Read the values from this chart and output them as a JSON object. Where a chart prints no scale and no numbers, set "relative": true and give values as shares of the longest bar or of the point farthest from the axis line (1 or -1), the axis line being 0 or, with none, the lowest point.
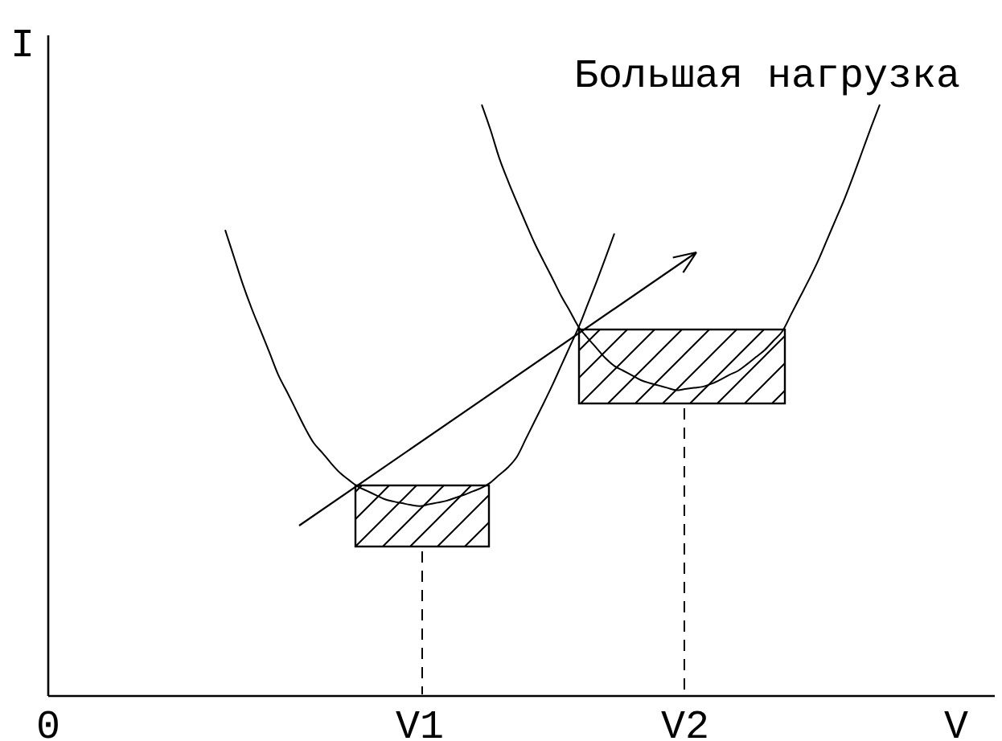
{
  "chart_data": {
    "type": "line",
    "relative": true,
    "xlabel": "V",
    "ylabel": "I",
    "categories": [
      "0",
      null,
      null,
      null,
      null,
      null,
      null,
      null,
      null,
      null,
      null,
      null,
      null,
      null,
      null,
      null,
      null,
      null,
      null,
      null,
      null,
      null,
      null,
      null,
      null,
      null,
      null,
      null,
      null,
      null,
      null,
      null,
      null,
      null,
      null,
      null,
      null,
      null,
      null,
      null,
      null,
      null,
      "V1",
      null,
      null,
      null,
      null,
      null,
      null,
      null,
      null,
      null,
      null,
      null,
      null,
      null,
      null,
      null,
      null,
      null,
      null,
      null,
      null,
      null,
      null,
      null,
      null,
      null,
      null,
      null,
      null,
      null,
      "V2",
      null,
      null,
      null,
      null,
      null,
      null,
      null,
      null,
      null,
      null,
      null,
      null,
      null,
      null,
      null,
      null,
      null,
      null,
      null,
      null,
      null,
      null,
      null,
      null,
      null,
      null,
      null,
      null,
      null,
      null,
      null,
      null,
      null,
      null,
      null
    ],
    "series": [
      {
        "color": "#000000",
        "values": [
          null,
          null,
          null,
          null,
          null,
          null,
          null,
          null,
          null,
          null,
          null,
          null,
          null,
          null,
          null,
          null,
          null,
          null,
          null,
          null,
          0.788,
          0.742,
          0.696,
          0.655,
          0.618,
          0.581,
          0.543,
          0.514,
          0.484,
          0.454,
          0.428,
          0.411,
          0.393,
          0.377,
          0.365,
          0.354,
          0.347,
          0.34,
          0.333,
          0.329,
          0.326,
          0.323,
          0.321,
          0.324,
          0.327,
          0.33,
          0.335,
          0.34,
          0.346,
          0.352,
          0.361,
          0.374,
          0.387,
          0.405,
          0.435,
          0.465,
          0.495,
          0.526,
          0.559,
          0.592,
          0.625,
          0.663,
          0.701,
          0.741,
          0.782,
          null,
          null,
          null,
          null,
          null,
          null,
          null,
          null,
          null,
          null,
          null,
          null,
          null,
          null,
          null,
          null,
          null,
          null,
          null,
          null,
          null,
          null,
          null,
          null,
          null,
          null,
          null,
          null,
          null,
          null,
          null,
          null,
          null,
          null,
          null,
          null,
          null,
          null,
          null,
          null,
          null,
          null,
          null
        ]
      },
      {
        "name": "Большая нагрузка",
        "color": "#000000",
        "values": [
          null,
          null,
          null,
          null,
          null,
          null,
          null,
          null,
          null,
          null,
          null,
          null,
          null,
          null,
          null,
          null,
          null,
          null,
          null,
          null,
          null,
          null,
          null,
          null,
          null,
          null,
          null,
          null,
          null,
          null,
          null,
          null,
          null,
          null,
          null,
          null,
          null,
          null,
          null,
          null,
          null,
          null,
          null,
          null,
          null,
          null,
          null,
          null,
          null,
          1,
          0.957,
          0.909,
          0.87,
          0.834,
          0.799,
          0.765,
          0.735,
          0.706,
          0.676,
          0.65,
          0.623,
          0.605,
          0.588,
          0.571,
          0.558,
          0.55,
          0.542,
          0.534,
          0.529,
          0.525,
          0.521,
          0.517,
          0.519,
          0.521,
          0.523,
          0.528,
          0.535,
          0.543,
          0.55,
          0.561,
          0.573,
          0.585,
          0.601,
          0.617,
          0.646,
          0.675,
          0.704,
          0.735,
          0.77,
          0.805,
          0.84,
          0.879,
          0.92,
          0.961,
          1,
          null,
          null,
          null,
          null,
          null,
          null,
          null,
          null,
          null,
          null,
          null,
          null,
          null
        ]
      }
    ]
  }
}
